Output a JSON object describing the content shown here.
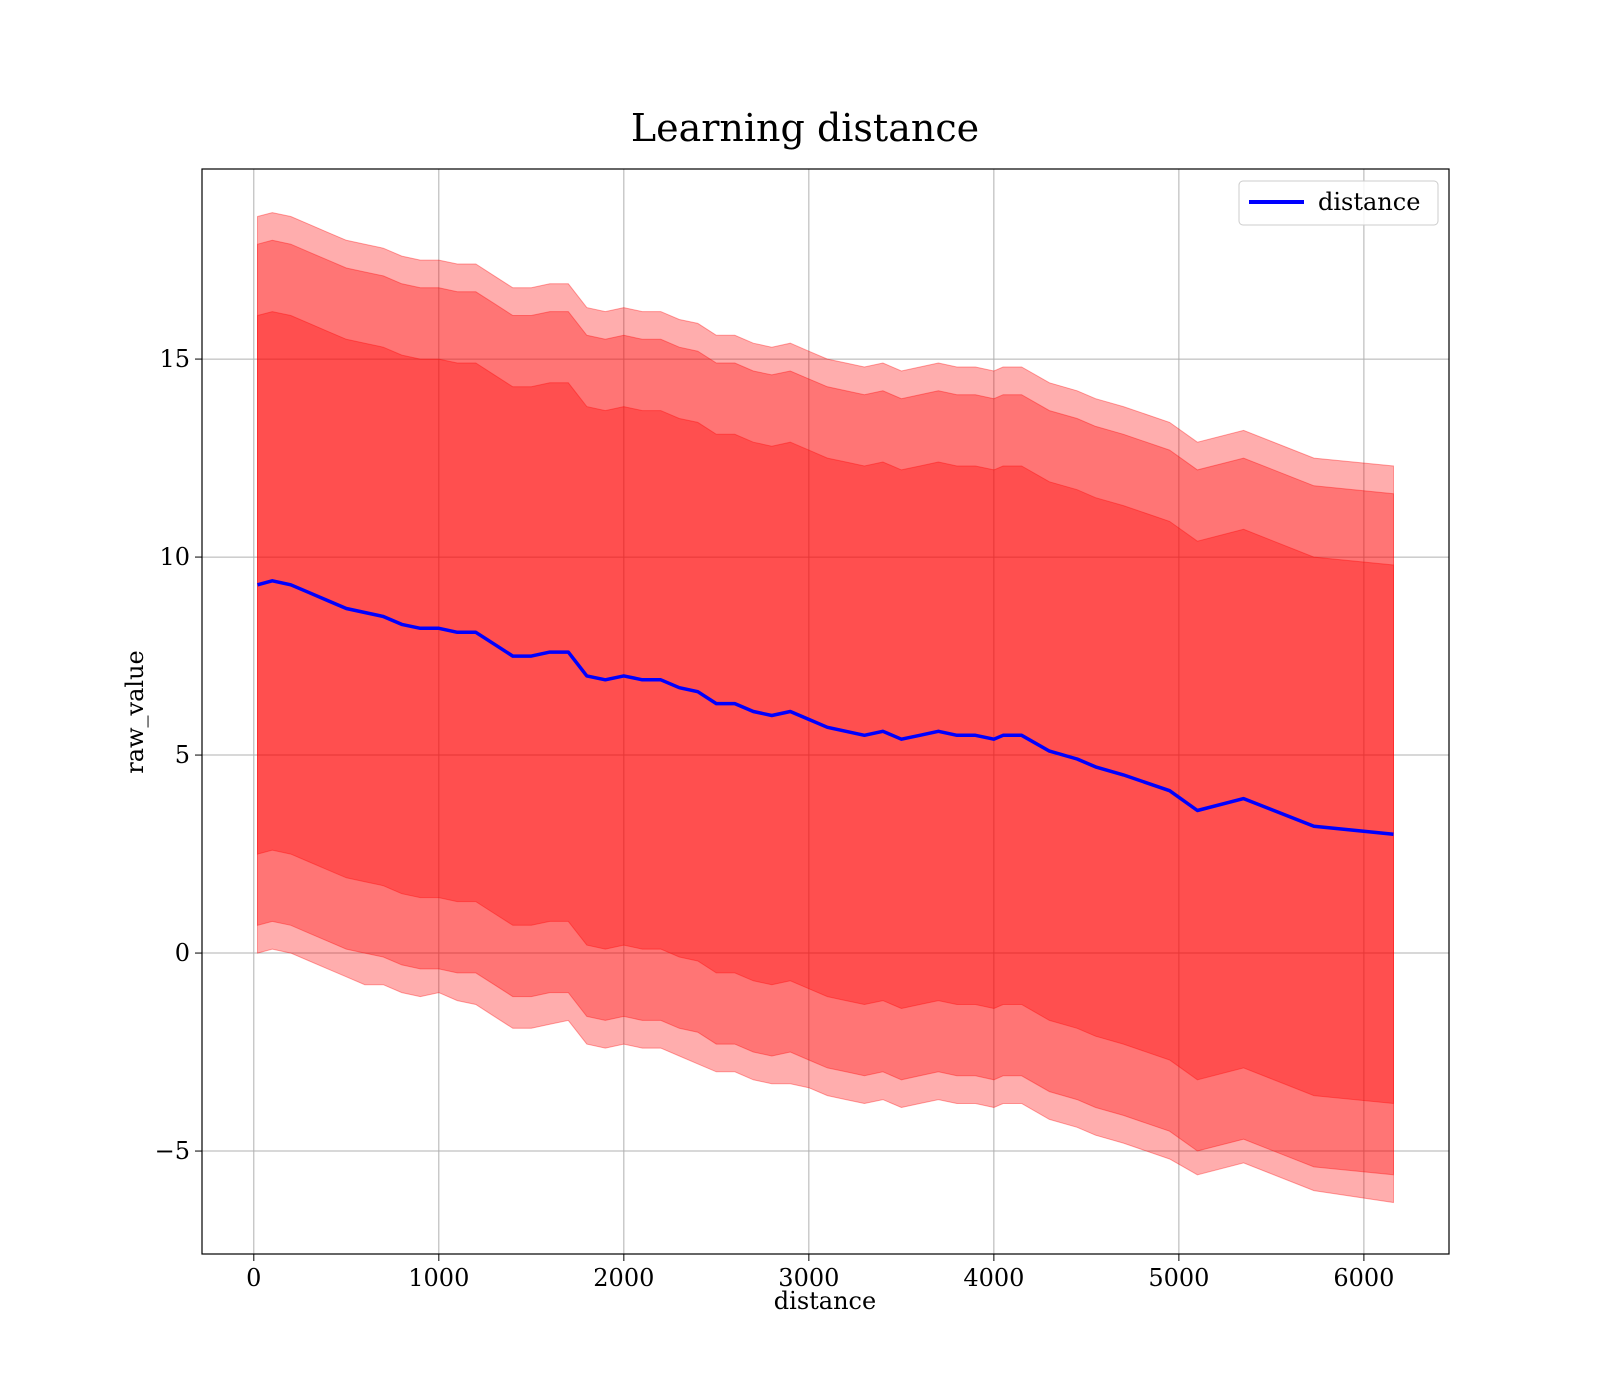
{
  "chart_data": {
    "type": "line",
    "title": "Learning distance",
    "xlabel": "distance",
    "ylabel": "raw_value",
    "xlim": [
      -280,
      6460
    ],
    "ylim": [
      -7.6,
      19.8
    ],
    "xticks": [
      0,
      1000,
      2000,
      3000,
      4000,
      5000,
      6000
    ],
    "xtick_labels": [
      "0",
      "1000",
      "2000",
      "3000",
      "4000",
      "5000",
      "6000"
    ],
    "yticks": [
      -5,
      0,
      5,
      10,
      15
    ],
    "ytick_labels": [
      "−5",
      "0",
      "5",
      "10",
      "15"
    ],
    "grid": true,
    "legend": {
      "position": "top-right",
      "entries": [
        "distance"
      ]
    },
    "colors": {
      "line": "#0000ff",
      "band": "#ff0000",
      "band_opacity": 0.32,
      "grid": "#b0b0b0"
    },
    "x": [
      20,
      100,
      200,
      300,
      400,
      500,
      600,
      700,
      800,
      900,
      1000,
      1100,
      1200,
      1300,
      1400,
      1500,
      1600,
      1700,
      1800,
      1900,
      2000,
      2100,
      2200,
      2300,
      2400,
      2500,
      2600,
      2700,
      2800,
      2900,
      3000,
      3100,
      3200,
      3300,
      3400,
      3500,
      3600,
      3700,
      3800,
      3900,
      4000,
      4050,
      4150,
      4300,
      4450,
      4550,
      4700,
      4950,
      5100,
      5350,
      5730,
      6160
    ],
    "series": [
      {
        "name": "distance",
        "values": [
          9.3,
          9.4,
          9.3,
          9.1,
          8.9,
          8.7,
          8.6,
          8.5,
          8.3,
          8.2,
          8.2,
          8.1,
          8.1,
          7.8,
          7.5,
          7.5,
          7.6,
          7.6,
          7.0,
          6.9,
          7.0,
          6.9,
          6.9,
          6.7,
          6.6,
          6.3,
          6.3,
          6.1,
          6.0,
          6.1,
          5.9,
          5.7,
          5.6,
          5.5,
          5.6,
          5.4,
          5.5,
          5.6,
          5.5,
          5.5,
          5.4,
          5.5,
          5.5,
          5.1,
          4.9,
          4.7,
          4.5,
          4.1,
          3.6,
          3.9,
          3.2,
          3.0
        ]
      }
    ],
    "bands": [
      {
        "lower": [
          0.0,
          0.1,
          0.0,
          -0.2,
          -0.4,
          -0.6,
          -0.8,
          -0.8,
          -1.0,
          -1.1,
          -1.0,
          -1.2,
          -1.3,
          -1.6,
          -1.9,
          -1.9,
          -1.8,
          -1.7,
          -2.3,
          -2.4,
          -2.3,
          -2.4,
          -2.4,
          -2.6,
          -2.8,
          -3.0,
          -3.0,
          -3.2,
          -3.3,
          -3.3,
          -3.4,
          -3.6,
          -3.7,
          -3.8,
          -3.7,
          -3.9,
          -3.8,
          -3.7,
          -3.8,
          -3.8,
          -3.9,
          -3.8,
          -3.8,
          -4.2,
          -4.4,
          -4.6,
          -4.8,
          -5.2,
          -5.6,
          -5.3,
          -6.0,
          -6.3
        ],
        "upper": [
          18.6,
          18.7,
          18.6,
          18.4,
          18.2,
          18.0,
          17.9,
          17.8,
          17.6,
          17.5,
          17.5,
          17.4,
          17.4,
          17.1,
          16.8,
          16.8,
          16.9,
          16.9,
          16.3,
          16.2,
          16.3,
          16.2,
          16.2,
          16.0,
          15.9,
          15.6,
          15.6,
          15.4,
          15.3,
          15.4,
          15.2,
          15.0,
          14.9,
          14.8,
          14.9,
          14.7,
          14.8,
          14.9,
          14.8,
          14.8,
          14.7,
          14.8,
          14.8,
          14.4,
          14.2,
          14.0,
          13.8,
          13.4,
          12.9,
          13.2,
          12.5,
          12.3
        ]
      },
      {
        "lower": [
          0.7,
          0.8,
          0.7,
          0.5,
          0.3,
          0.1,
          0.0,
          -0.1,
          -0.3,
          -0.4,
          -0.4,
          -0.5,
          -0.5,
          -0.8,
          -1.1,
          -1.1,
          -1.0,
          -1.0,
          -1.6,
          -1.7,
          -1.6,
          -1.7,
          -1.7,
          -1.9,
          -2.0,
          -2.3,
          -2.3,
          -2.5,
          -2.6,
          -2.5,
          -2.7,
          -2.9,
          -3.0,
          -3.1,
          -3.0,
          -3.2,
          -3.1,
          -3.0,
          -3.1,
          -3.1,
          -3.2,
          -3.1,
          -3.1,
          -3.5,
          -3.7,
          -3.9,
          -4.1,
          -4.5,
          -5.0,
          -4.7,
          -5.4,
          -5.6
        ],
        "upper": [
          17.9,
          18.0,
          17.9,
          17.7,
          17.5,
          17.3,
          17.2,
          17.1,
          16.9,
          16.8,
          16.8,
          16.7,
          16.7,
          16.4,
          16.1,
          16.1,
          16.2,
          16.2,
          15.6,
          15.5,
          15.6,
          15.5,
          15.5,
          15.3,
          15.2,
          14.9,
          14.9,
          14.7,
          14.6,
          14.7,
          14.5,
          14.3,
          14.2,
          14.1,
          14.2,
          14.0,
          14.1,
          14.2,
          14.1,
          14.1,
          14.0,
          14.1,
          14.1,
          13.7,
          13.5,
          13.3,
          13.1,
          12.7,
          12.2,
          12.5,
          11.8,
          11.6
        ]
      },
      {
        "lower": [
          2.5,
          2.6,
          2.5,
          2.3,
          2.1,
          1.9,
          1.8,
          1.7,
          1.5,
          1.4,
          1.4,
          1.3,
          1.3,
          1.0,
          0.7,
          0.7,
          0.8,
          0.8,
          0.2,
          0.1,
          0.2,
          0.1,
          0.1,
          -0.1,
          -0.2,
          -0.5,
          -0.5,
          -0.7,
          -0.8,
          -0.7,
          -0.9,
          -1.1,
          -1.2,
          -1.3,
          -1.2,
          -1.4,
          -1.3,
          -1.2,
          -1.3,
          -1.3,
          -1.4,
          -1.3,
          -1.3,
          -1.7,
          -1.9,
          -2.1,
          -2.3,
          -2.7,
          -3.2,
          -2.9,
          -3.6,
          -3.8
        ],
        "upper": [
          16.1,
          16.2,
          16.1,
          15.9,
          15.7,
          15.5,
          15.4,
          15.3,
          15.1,
          15.0,
          15.0,
          14.9,
          14.9,
          14.6,
          14.3,
          14.3,
          14.4,
          14.4,
          13.8,
          13.7,
          13.8,
          13.7,
          13.7,
          13.5,
          13.4,
          13.1,
          13.1,
          12.9,
          12.8,
          12.9,
          12.7,
          12.5,
          12.4,
          12.3,
          12.4,
          12.2,
          12.3,
          12.4,
          12.3,
          12.3,
          12.2,
          12.3,
          12.3,
          11.9,
          11.7,
          11.5,
          11.3,
          10.9,
          10.4,
          10.7,
          10.0,
          9.8
        ]
      }
    ]
  }
}
